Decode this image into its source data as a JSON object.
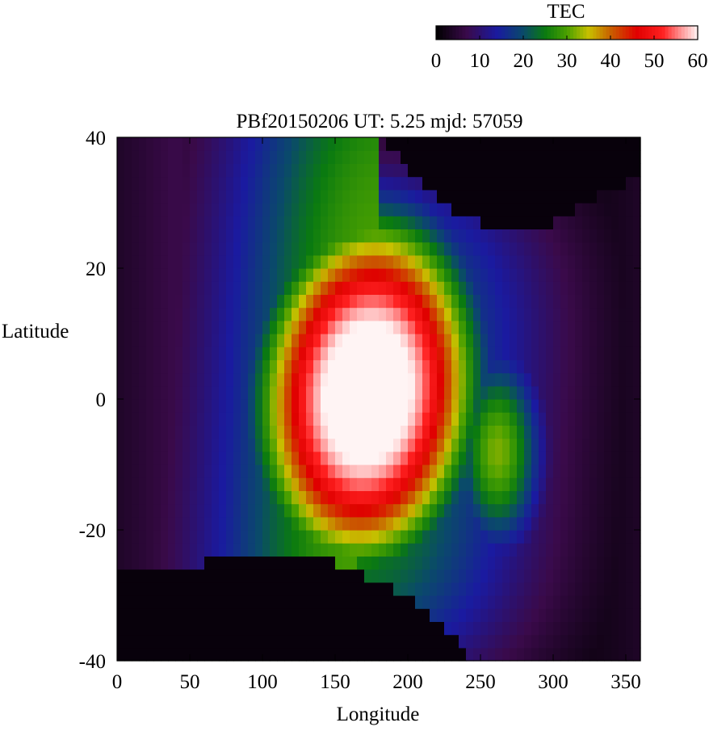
{
  "chart_data": {
    "type": "heatmap",
    "title": "PBf20150206  UT: 5.25  mjd: 57059",
    "xlabel": "Longitude",
    "ylabel": "Latitude",
    "xlim": [
      0,
      360
    ],
    "ylim": [
      -40,
      40
    ],
    "x_ticks": [
      "0",
      "50",
      "100",
      "150",
      "200",
      "250",
      "300",
      "350"
    ],
    "y_ticks": [
      "40",
      "20",
      "0",
      "-20",
      "-40"
    ],
    "grid": false,
    "colorbar": {
      "title": "TEC",
      "range": [
        0,
        60
      ],
      "ticks": [
        "0",
        "10",
        "20",
        "30",
        "40",
        "50",
        "60"
      ],
      "placement": "top-right",
      "colormap": [
        {
          "value": 0,
          "color": "#000000"
        },
        {
          "value": 7,
          "color": "#3a0a4a"
        },
        {
          "value": 14,
          "color": "#1a1aa0"
        },
        {
          "value": 20,
          "color": "#0a4a6a"
        },
        {
          "value": 25,
          "color": "#0a7a10"
        },
        {
          "value": 30,
          "color": "#4aa000"
        },
        {
          "value": 35,
          "color": "#c8c000"
        },
        {
          "value": 40,
          "color": "#c86000"
        },
        {
          "value": 46,
          "color": "#e00000"
        },
        {
          "value": 52,
          "color": "#ff2020"
        },
        {
          "value": 56,
          "color": "#ff9090"
        },
        {
          "value": 60,
          "color": "#fff4f4"
        }
      ]
    },
    "grid_resolution": {
      "dlon": 5,
      "dlat": 2
    },
    "features": {
      "peak_center": {
        "lon": 172,
        "lat": 0,
        "value": 60
      },
      "night_floor_value": 1,
      "secondary_enhancement": {
        "lon": 262,
        "lat": -8
      }
    }
  }
}
